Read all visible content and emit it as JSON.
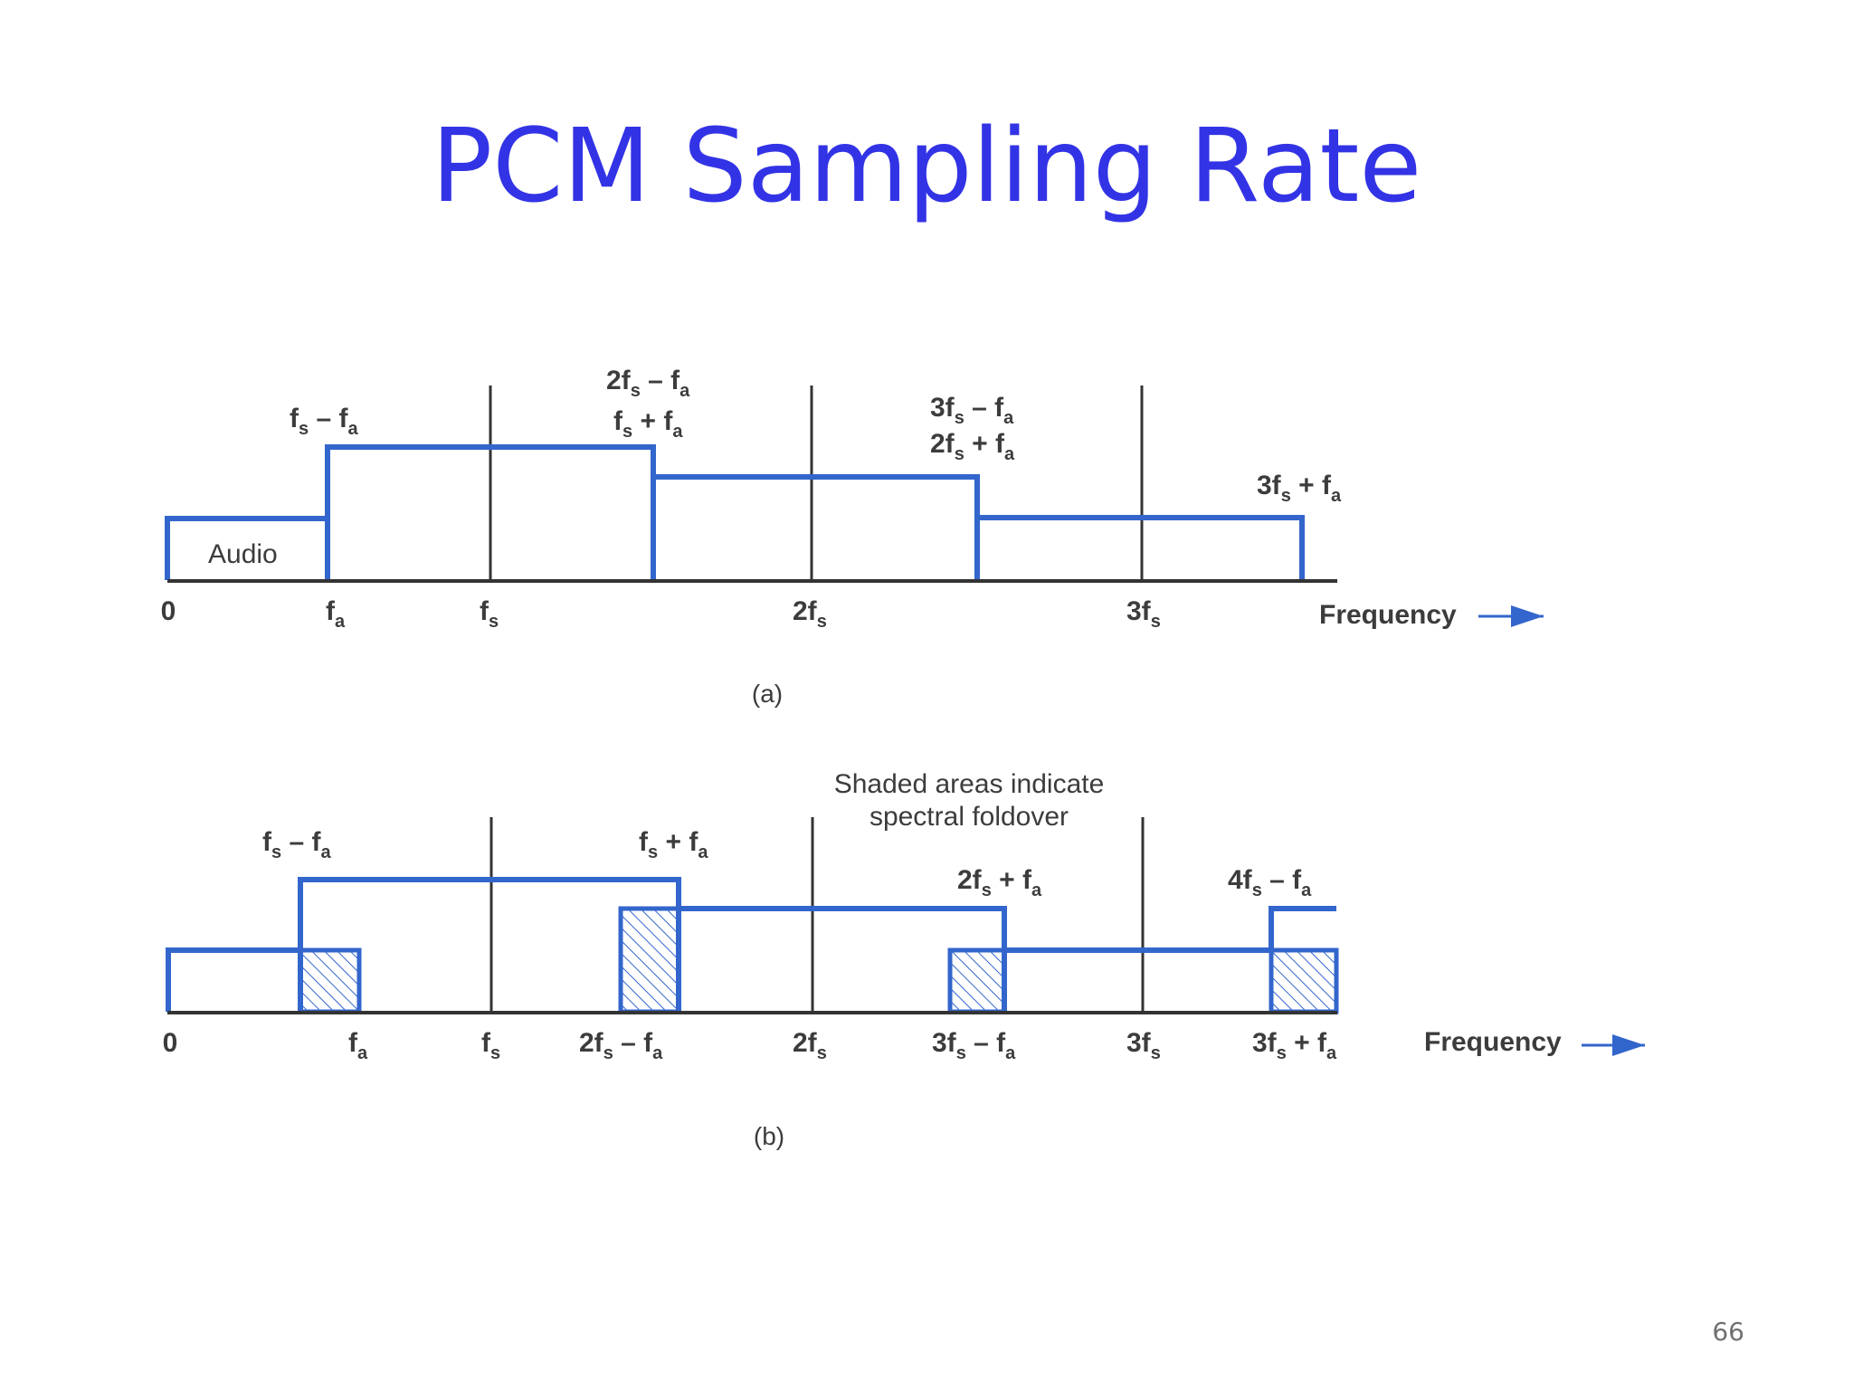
{
  "title": "PCM Sampling Rate",
  "page_number": "66",
  "colors": {
    "title": "#3333e6",
    "band": "#3366cc",
    "hatch": "#3366cc",
    "axis": "#333333",
    "text": "#3c3c3c"
  },
  "diagram_a": {
    "caption": "(a)",
    "axis_label": "Frequency",
    "audio_label": "Audio",
    "ticks": [
      {
        "main": "0",
        "sub": ""
      },
      {
        "main": "f",
        "sub": "a"
      },
      {
        "main": "f",
        "sub": "s"
      },
      {
        "main": "2f",
        "sub": "s"
      },
      {
        "main": "3f",
        "sub": "s"
      }
    ],
    "band_labels": [
      [
        {
          "t": "f"
        },
        {
          "s": "s"
        },
        {
          "t": " – f"
        },
        {
          "s": "a"
        }
      ],
      [
        {
          "t": "2f"
        },
        {
          "s": "s"
        },
        {
          "t": " – f"
        },
        {
          "s": "a"
        }
      ],
      [
        {
          "t": "f"
        },
        {
          "s": "s"
        },
        {
          "t": " + f"
        },
        {
          "s": "a"
        }
      ],
      [
        {
          "t": "3f"
        },
        {
          "s": "s"
        },
        {
          "t": " – f"
        },
        {
          "s": "a"
        }
      ],
      [
        {
          "t": "2f"
        },
        {
          "s": "s"
        },
        {
          "t": " + f"
        },
        {
          "s": "a"
        }
      ],
      [
        {
          "t": "3f"
        },
        {
          "s": "s"
        },
        {
          "t": " + f"
        },
        {
          "s": "a"
        }
      ]
    ]
  },
  "diagram_b": {
    "caption": "(b)",
    "axis_label": "Frequency",
    "note_line1": "Shaded areas indicate",
    "note_line2": "spectral foldover",
    "ticks": [
      [
        {
          "t": "0"
        }
      ],
      [
        {
          "t": "f"
        },
        {
          "s": "a"
        }
      ],
      [
        {
          "t": "f"
        },
        {
          "s": "s"
        }
      ],
      [
        {
          "t": "2f"
        },
        {
          "s": "s"
        },
        {
          "t": " – f"
        },
        {
          "s": "a"
        }
      ],
      [
        {
          "t": "2f"
        },
        {
          "s": "s"
        }
      ],
      [
        {
          "t": "3f"
        },
        {
          "s": "s"
        },
        {
          "t": " – f"
        },
        {
          "s": "a"
        }
      ],
      [
        {
          "t": "3f"
        },
        {
          "s": "s"
        }
      ],
      [
        {
          "t": "3f"
        },
        {
          "s": "s"
        },
        {
          "t": " + f"
        },
        {
          "s": "a"
        }
      ]
    ],
    "band_labels": [
      [
        {
          "t": "f"
        },
        {
          "s": "s"
        },
        {
          "t": " – f"
        },
        {
          "s": "a"
        }
      ],
      [
        {
          "t": "f"
        },
        {
          "s": "s"
        },
        {
          "t": " + f"
        },
        {
          "s": "a"
        }
      ],
      [
        {
          "t": "2f"
        },
        {
          "s": "s"
        },
        {
          "t": " + f"
        },
        {
          "s": "a"
        }
      ],
      [
        {
          "t": "4f"
        },
        {
          "s": "s"
        },
        {
          "t": " – f"
        },
        {
          "s": "a"
        }
      ]
    ]
  }
}
